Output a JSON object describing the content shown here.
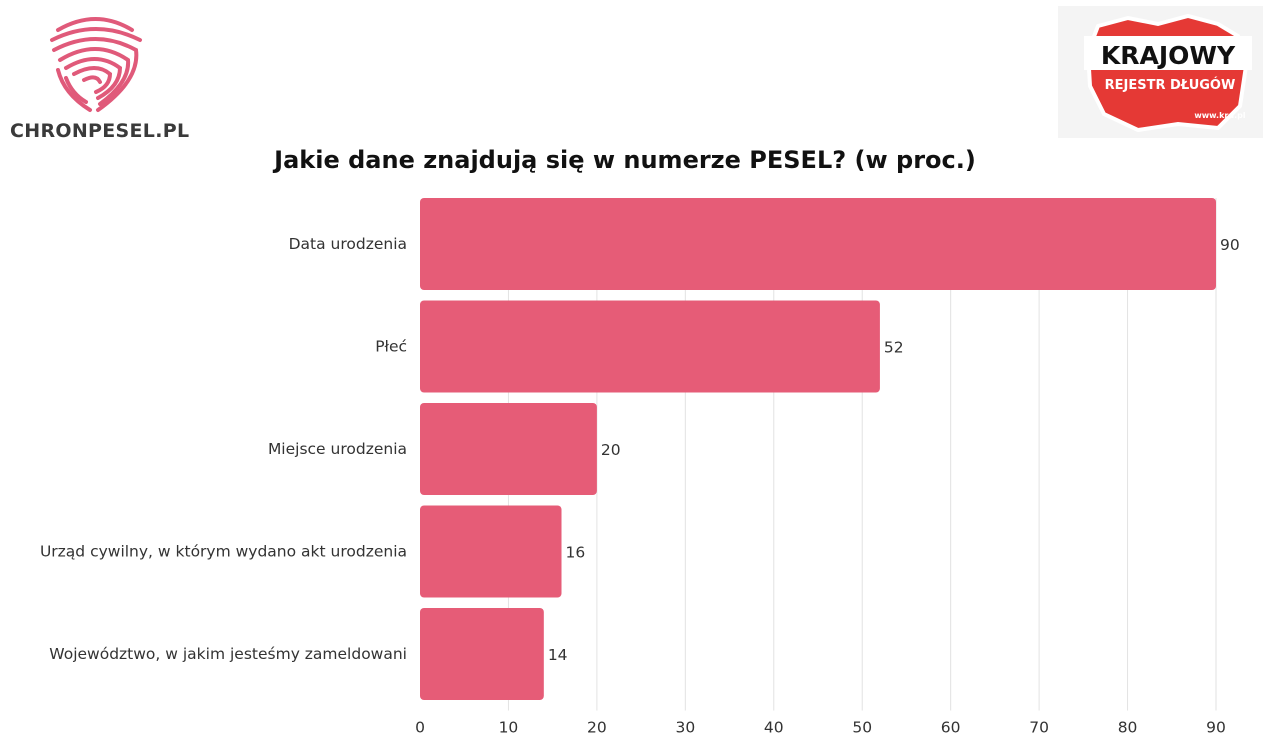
{
  "logos": {
    "left_text": "CHRONPESEL.PL",
    "right_line1": "KRAJOWY",
    "right_line2": "REJESTR DŁUGÓW",
    "right_line3": "www.krd.pl",
    "left_color": "#e05a7a",
    "right_color": "#e53935"
  },
  "chart_data": {
    "type": "bar",
    "orientation": "horizontal",
    "title": "Jakie dane znajdują się w numerze PESEL? (w proc.)",
    "categories": [
      "Data urodzenia",
      "Płeć",
      "Miejsce urodzenia",
      "Urząd cywilny, w którym wydano akt urodzenia",
      "Województwo, w jakim jesteśmy zameldowani"
    ],
    "values": [
      90,
      52,
      20,
      16,
      14
    ],
    "xlim": [
      0,
      90
    ],
    "xticks": [
      0,
      10,
      20,
      30,
      40,
      50,
      60,
      70,
      80,
      90
    ],
    "grid": true,
    "bar_color": "#e65c77",
    "xlabel": "",
    "ylabel": ""
  }
}
